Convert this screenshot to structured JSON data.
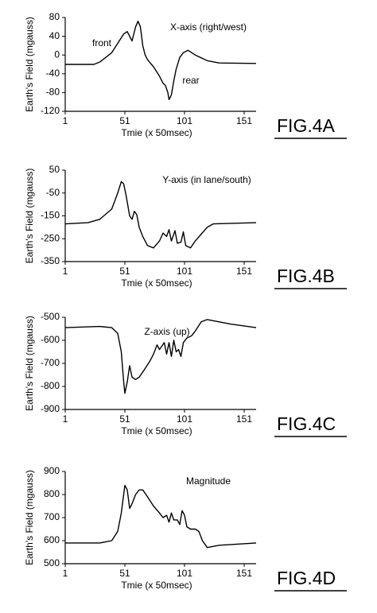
{
  "chart_data": [
    {
      "type": "line",
      "figure_label": "FIG.4A",
      "title": "X-axis (right/west)",
      "annotations": [
        "front",
        "rear"
      ],
      "x_label": "Tmie (x 50msec)",
      "y_label": "Earth's Field (mgauss)",
      "xlim": [
        1,
        161
      ],
      "xticks": [
        1,
        51,
        101,
        151
      ],
      "ylim": [
        -120,
        80
      ],
      "yticks": [
        -120,
        -80,
        -40,
        0,
        40,
        80
      ],
      "color": "#000000",
      "x": [
        1,
        25,
        30,
        40,
        45,
        50,
        53,
        55,
        57,
        60,
        62,
        64,
        66,
        68,
        70,
        75,
        80,
        83,
        85,
        87,
        88,
        90,
        92,
        94,
        97,
        100,
        104,
        110,
        120,
        130,
        161
      ],
      "values": [
        -20,
        -20,
        -15,
        5,
        25,
        45,
        50,
        40,
        30,
        60,
        72,
        60,
        20,
        0,
        -10,
        -25,
        -45,
        -60,
        -65,
        -80,
        -95,
        -85,
        -55,
        -30,
        -5,
        5,
        10,
        0,
        -12,
        -17,
        -18
      ]
    },
    {
      "type": "line",
      "figure_label": "FIG.4B",
      "title": "Y-axis (in lane/south)",
      "x_label": "Tmie (x 50msec)",
      "y_label": "Earth's Field (mgauss)",
      "xlim": [
        1,
        161
      ],
      "xticks": [
        1,
        51,
        101,
        151
      ],
      "ylim": [
        -350,
        50
      ],
      "yticks": [
        -350,
        -250,
        -150,
        -50,
        50
      ],
      "color": "#000000",
      "x": [
        1,
        20,
        30,
        40,
        45,
        48,
        50,
        52,
        55,
        57,
        59,
        61,
        63,
        66,
        70,
        75,
        80,
        83,
        86,
        88,
        90,
        93,
        95,
        98,
        100,
        102,
        106,
        110,
        115,
        120,
        125,
        161
      ],
      "values": [
        -185,
        -180,
        -165,
        -120,
        -50,
        0,
        -10,
        -60,
        -150,
        -165,
        -130,
        -145,
        -200,
        -240,
        -280,
        -290,
        -260,
        -225,
        -240,
        -210,
        -260,
        -215,
        -270,
        -265,
        -220,
        -280,
        -290,
        -260,
        -230,
        -200,
        -185,
        -180
      ]
    },
    {
      "type": "line",
      "figure_label": "FIG.4C",
      "title": "Z-axis (up)",
      "x_label": "Tmie (x 50msec)",
      "y_label": "Earth's Field (mgauss)",
      "xlim": [
        1,
        161
      ],
      "xticks": [
        1,
        51,
        101,
        151
      ],
      "ylim": [
        -900,
        -500
      ],
      "yticks": [
        -900,
        -800,
        -700,
        -600,
        -500
      ],
      "color": "#000000",
      "x": [
        1,
        30,
        40,
        45,
        48,
        50,
        51,
        53,
        55,
        57,
        60,
        63,
        67,
        72,
        75,
        78,
        80,
        84,
        86,
        88,
        90,
        92,
        94,
        96,
        98,
        100,
        103,
        107,
        110,
        115,
        120,
        140,
        161
      ],
      "values": [
        -545,
        -540,
        -545,
        -570,
        -650,
        -780,
        -830,
        -780,
        -710,
        -760,
        -770,
        -760,
        -730,
        -690,
        -660,
        -620,
        -640,
        -610,
        -660,
        -610,
        -670,
        -600,
        -650,
        -640,
        -670,
        -610,
        -590,
        -580,
        -560,
        -520,
        -510,
        -530,
        -545
      ]
    },
    {
      "type": "line",
      "figure_label": "FIG.4D",
      "title": "Magnitude",
      "x_label": "Tmie (x 50msec)",
      "y_label": "Earth's Field (mgauss)",
      "xlim": [
        1,
        161
      ],
      "xticks": [
        1,
        51,
        101,
        151
      ],
      "ylim": [
        500,
        900
      ],
      "yticks": [
        500,
        600,
        700,
        800,
        900
      ],
      "color": "#000000",
      "x": [
        1,
        30,
        40,
        45,
        48,
        51,
        53,
        55,
        57,
        60,
        63,
        66,
        70,
        75,
        80,
        83,
        86,
        88,
        90,
        92,
        95,
        97,
        99,
        101,
        103,
        106,
        110,
        113,
        116,
        120,
        130,
        161
      ],
      "values": [
        590,
        590,
        600,
        640,
        720,
        840,
        820,
        740,
        760,
        800,
        820,
        820,
        790,
        750,
        720,
        700,
        710,
        680,
        720,
        690,
        690,
        670,
        730,
        710,
        660,
        650,
        650,
        640,
        600,
        570,
        580,
        590
      ]
    }
  ]
}
